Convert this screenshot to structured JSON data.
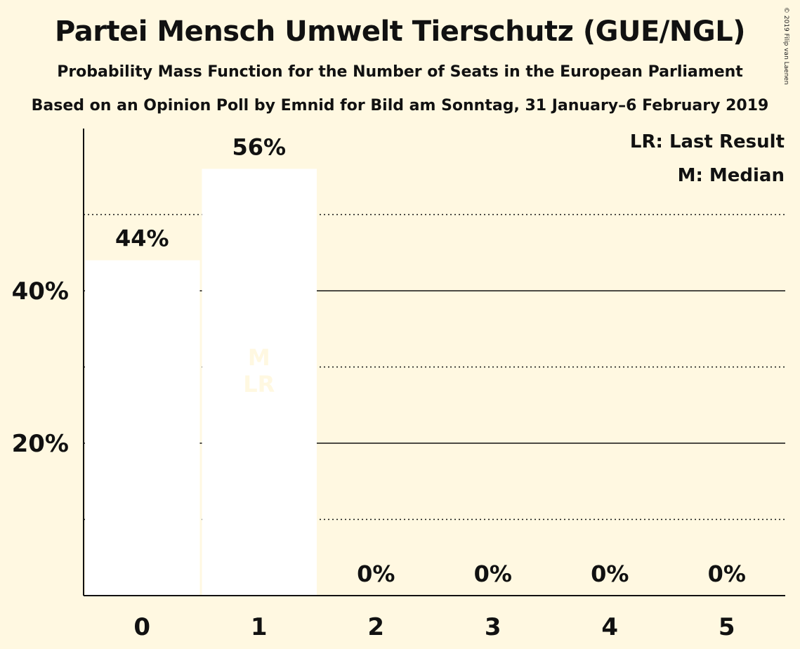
{
  "chart_data": {
    "type": "bar",
    "title": "Partei Mensch Umwelt Tierschutz (GUE/NGL)",
    "subtitle": "Probability Mass Function for the Number of Seats in the European Parliament",
    "subtitle2": "Based on an Opinion Poll by Emnid for Bild am Sonntag, 31 January–6 February 2019",
    "copyright": "© 2019 Filip van Laenen",
    "categories": [
      "0",
      "1",
      "2",
      "3",
      "4",
      "5"
    ],
    "values": [
      44,
      56,
      0,
      0,
      0,
      0
    ],
    "data_labels": [
      "44%",
      "56%",
      "0%",
      "0%",
      "0%",
      "0%"
    ],
    "ylim": [
      0,
      60
    ],
    "yticks": [
      20,
      40
    ],
    "ytick_labels": [
      "20%",
      "40%"
    ],
    "dotted_gridlines": [
      10,
      30,
      50
    ],
    "solid_gridlines": [
      20,
      40
    ],
    "median_index": 1,
    "last_result_index": 1,
    "bar_markers": [
      "M",
      "LR"
    ],
    "legend": [
      "LR: Last Result",
      "M: Median"
    ],
    "legend_position": "top-right",
    "colors": {
      "background": "#FFF8E1",
      "bar": "#FFFFFF",
      "marker_text": "#FFF8E1",
      "text": "#111111"
    }
  }
}
